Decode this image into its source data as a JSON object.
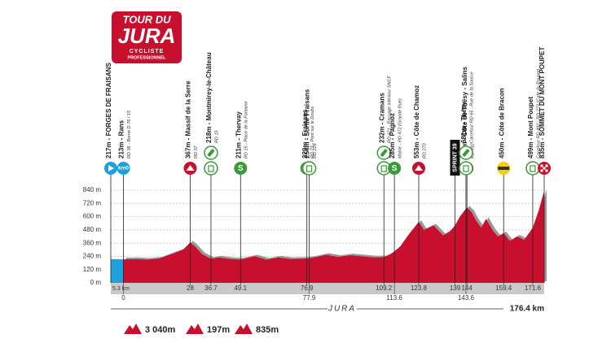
{
  "logo": {
    "line1": "TOUR DU",
    "line2": "JURA",
    "line3": "CYCLISTE",
    "line4": "PROFESSIONNEL"
  },
  "chart_data": {
    "type": "area",
    "profile": {
      "x": [
        -5.3,
        0,
        5,
        10,
        15,
        20,
        25,
        28,
        30,
        33,
        36.7,
        40,
        45,
        49.1,
        55,
        60,
        65,
        70,
        76.9,
        80,
        85,
        90,
        95,
        100,
        105,
        109.2,
        112,
        113.6,
        116,
        120,
        123.8,
        126,
        130,
        134,
        137,
        139,
        141,
        144,
        146,
        148,
        150,
        152,
        155,
        157,
        159.4,
        162,
        165,
        168,
        171.6,
        174,
        176.4
      ],
      "values": [
        217,
        213,
        215,
        210,
        220,
        260,
        300,
        367,
        330,
        260,
        218,
        230,
        215,
        211,
        240,
        210,
        230,
        215,
        220,
        230,
        254,
        235,
        250,
        240,
        230,
        232,
        260,
        285,
        330,
        450,
        553,
        480,
        520,
        430,
        470,
        520,
        600,
        684,
        640,
        560,
        500,
        580,
        470,
        420,
        450,
        380,
        420,
        390,
        499,
        650,
        835
      ],
      "color": "#c8102e",
      "neutral_color": "#1ea0dc"
    },
    "xlim": [
      -5.3,
      176.4
    ],
    "ylim": [
      0,
      840
    ],
    "yticks": [
      {
        "value": 0,
        "label": "0 m"
      },
      {
        "value": 120,
        "label": "120 m"
      },
      {
        "value": 240,
        "label": "240 m"
      },
      {
        "value": 360,
        "label": "360 m"
      },
      {
        "value": 480,
        "label": "480 m"
      },
      {
        "value": 600,
        "label": "600 m"
      },
      {
        "value": 720,
        "label": "720 m"
      },
      {
        "value": 840,
        "label": "840 m"
      }
    ],
    "xticks": [
      0,
      28,
      36.7,
      49.1,
      76.9,
      77.9,
      109.2,
      113.6,
      123.8,
      139,
      143.6,
      144,
      159.4,
      171.6
    ],
    "neutral_label": "5.3 km",
    "region": "JURA",
    "total_distance": "176.4 km",
    "grid": true,
    "markers": [
      {
        "km": -5.3,
        "label": "217m - FORGES DE FRAISANS",
        "icons": [
          "start"
        ]
      },
      {
        "km": 0,
        "label": "213m - Rans",
        "sub": "RD 36 - Borne D 76 / 15",
        "icons": [
          "km0"
        ],
        "icon_text": "km0"
      },
      {
        "km": 28,
        "label": "367m - Massif de la Serre",
        "sub": "RD 37",
        "icons": [
          "climb"
        ]
      },
      {
        "km": 36.7,
        "label": "218m - Montmirey-le-Château",
        "sub": "RD 15",
        "icons": [
          "feed",
          "bin"
        ]
      },
      {
        "km": 49.1,
        "label": "211m - Thervay",
        "sub": "RD 15 - Place de la Fontaine",
        "icons": [
          "sprint"
        ],
        "icon_text": "S"
      },
      {
        "km": 76.9,
        "label": "220m - Fraisans",
        "sub": "RD 73 - Pont sur le Doubs",
        "icons": [
          "sprint"
        ],
        "icon_text": "S"
      },
      {
        "km": 77.9,
        "label": "254m - Sortie Fraisans",
        "sub": "RD 228",
        "icons": [
          "bin"
        ]
      },
      {
        "km": 109.2,
        "label": "232m - Cramans",
        "sub": "RD 121 - Passage inférieur SNCF",
        "icons": [
          "feed",
          "bin"
        ]
      },
      {
        "km": 113.6,
        "label": "285m - Pagnoz",
        "sub": "Mairie - RD 472 (Grande Rue)",
        "icons": [
          "sprint"
        ],
        "icon_text": "S"
      },
      {
        "km": 123.8,
        "label": "553m - Côte de Chamoz",
        "sub": "RD 270",
        "icons": [
          "climb"
        ]
      },
      {
        "km": 139,
        "icons": [
          "sprintbox"
        ],
        "icon_text": "SPRINT 39"
      },
      {
        "km": 144,
        "label": "684m - Côte de Thésy - Salins",
        "sub": "RD 492",
        "icons": [
          "climb"
        ]
      },
      {
        "km": 143.6,
        "label": "681m - Thésy",
        "sub": "Carrefour RD 65 - Rue de la Source",
        "icons": [
          "feed",
          "bin"
        ]
      },
      {
        "km": 159.4,
        "label": "450m - Côte de Bracon",
        "icons": [
          "bonus"
        ]
      },
      {
        "km": 171.6,
        "label": "499m - Mont Poupet",
        "sub": "Carrefour RD 492 - RD 273 (Café du Poupet)",
        "icons": [
          "bin"
        ]
      },
      {
        "km": 176.4,
        "label": "835m - SOMMET DU MONT POUPET",
        "icons": [
          "finish"
        ]
      }
    ],
    "stats": [
      "3 040m",
      "197m",
      "835m"
    ]
  }
}
